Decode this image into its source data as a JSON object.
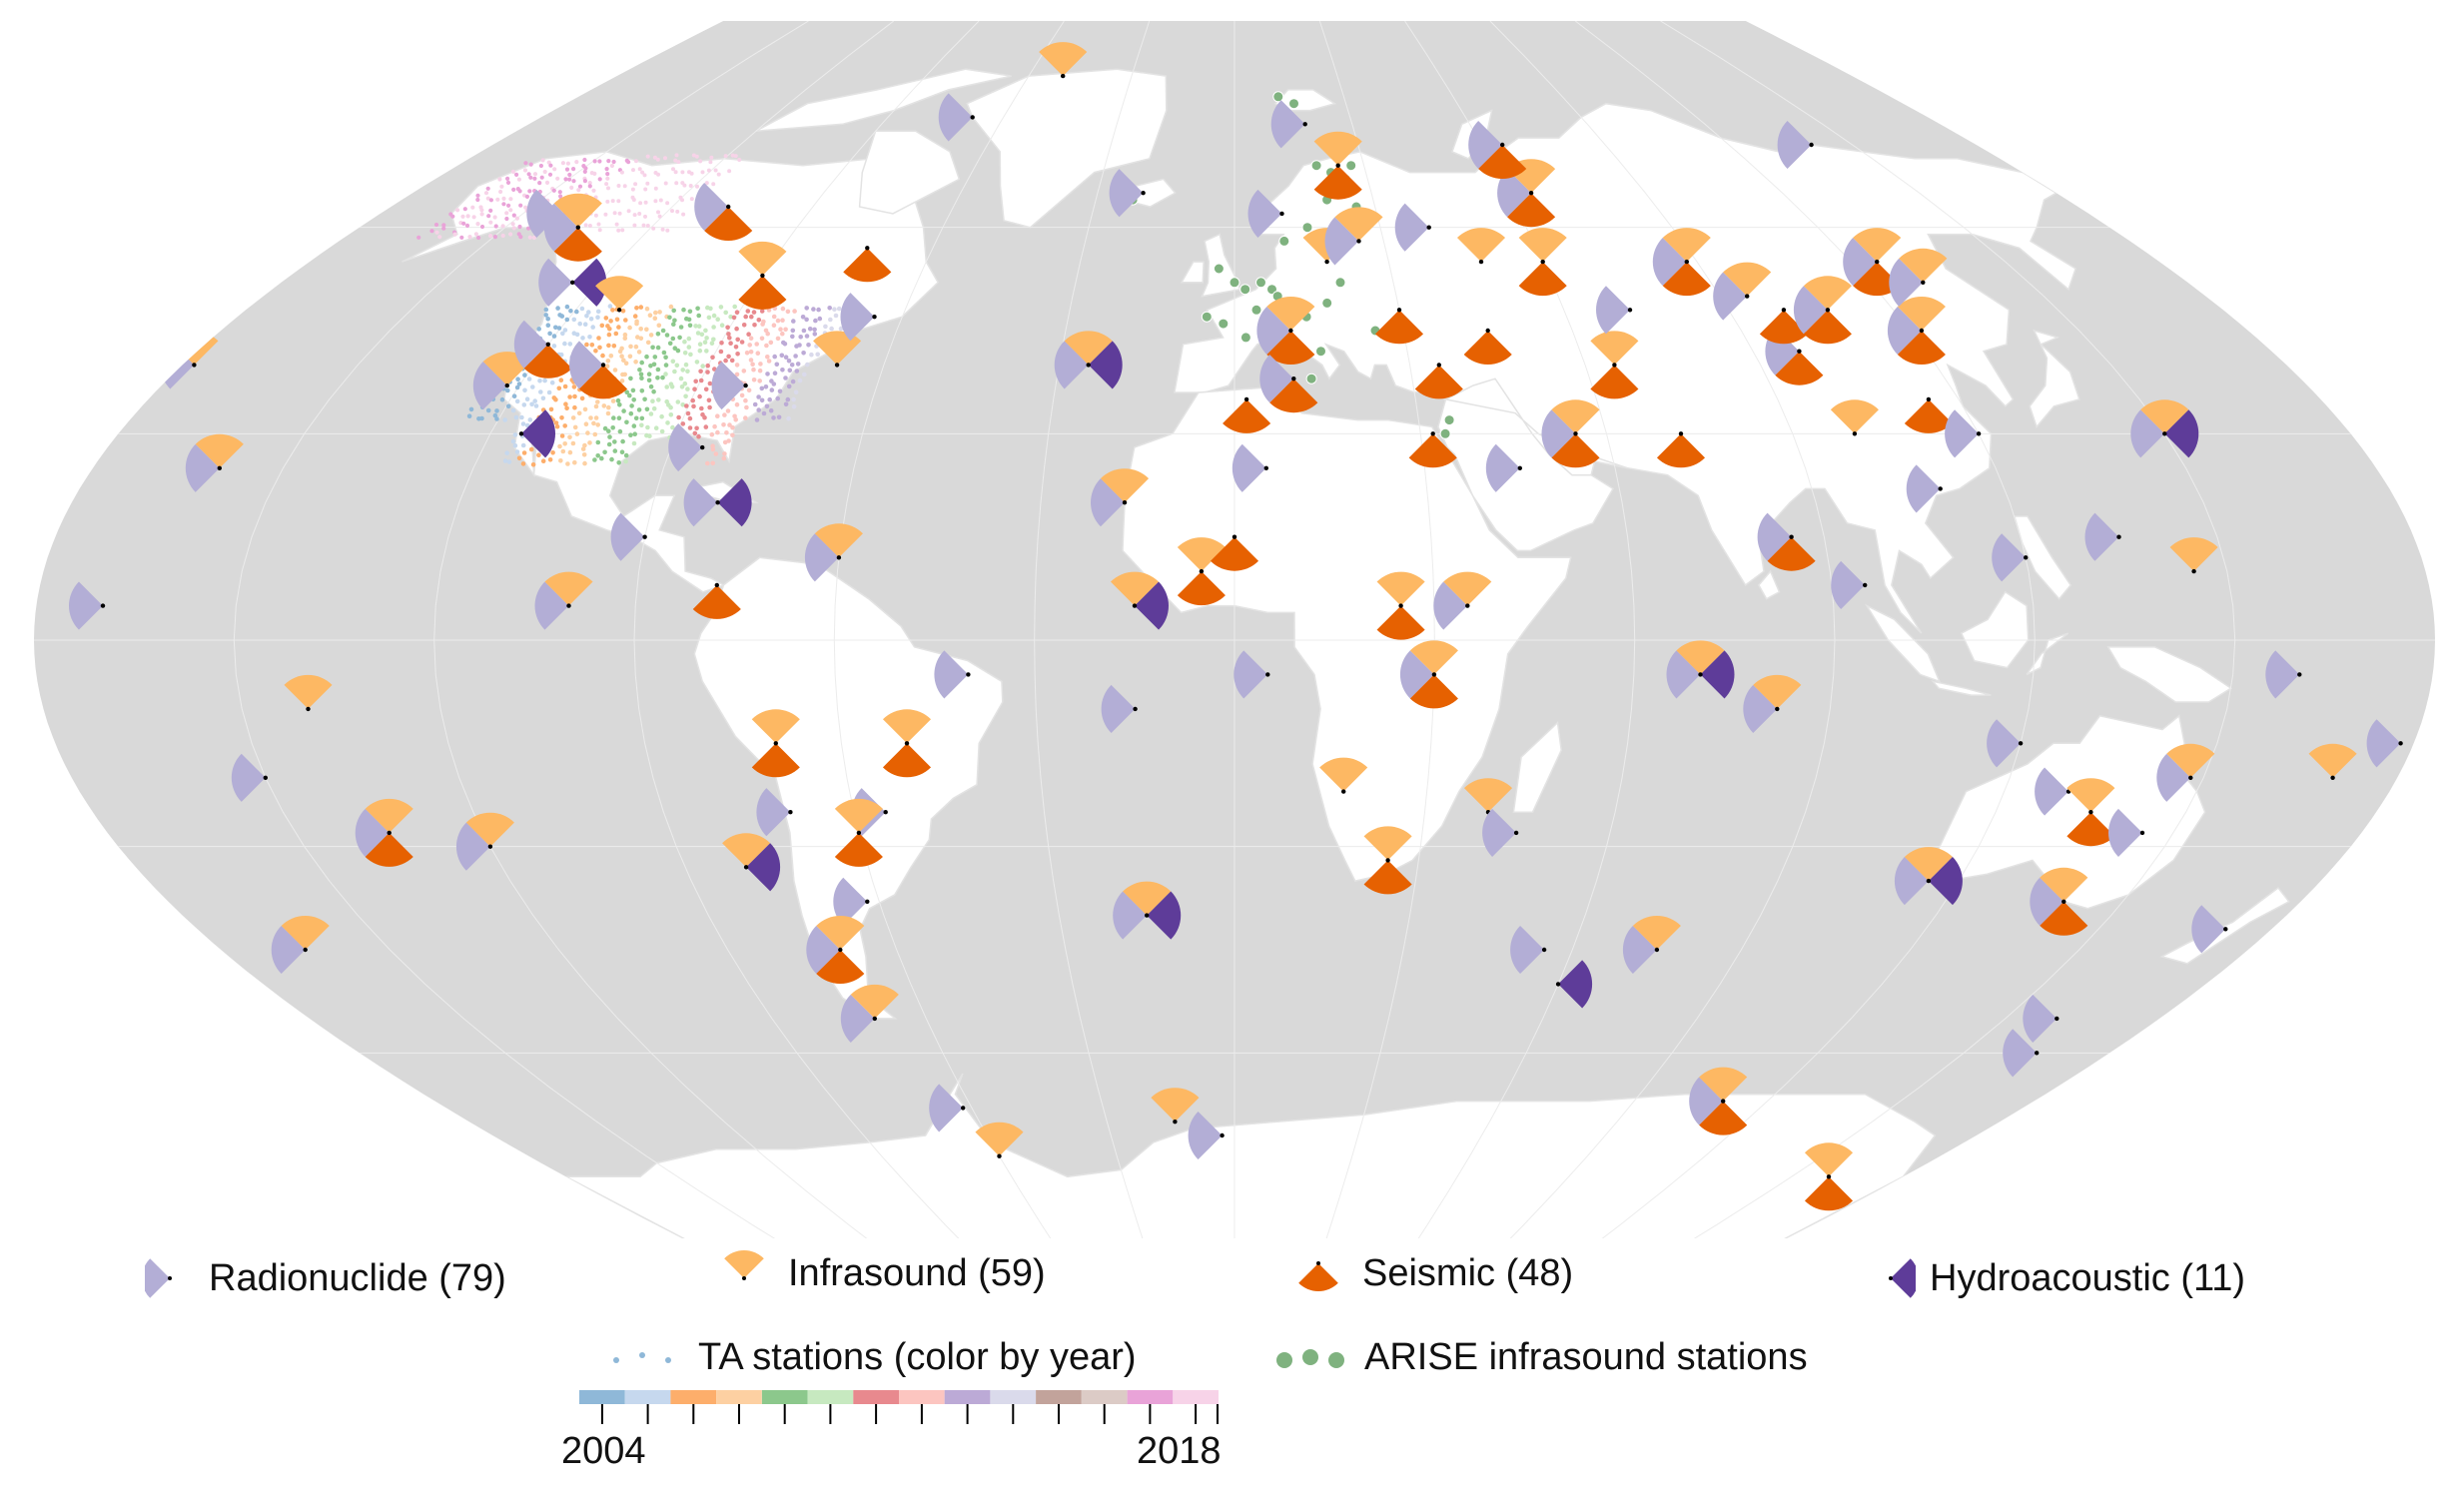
{
  "colors": {
    "ocean": "#d9d9d9",
    "land": "#ffffff",
    "radionuclide": "#b3aed6",
    "infrasound": "#fdb863",
    "seismic": "#e66101",
    "hydroacoustic": "#5e3c99",
    "arise": "#7fb27f",
    "ta_years": [
      "#8fb8d8",
      "#c6d8ee",
      "#fdae6b",
      "#fdd0a2",
      "#8cc88c",
      "#c7e9c0",
      "#e8898e",
      "#fcc5c0",
      "#bcaad6",
      "#dadaeb",
      "#c2a39b",
      "#dccbc6",
      "#e9a3d8",
      "#f7d3e8"
    ]
  },
  "legend": {
    "radionuclide": "Radionuclide (79)",
    "infrasound": "Infrasound (59)",
    "seismic": "Seismic (48)",
    "hydroacoustic": "Hydroacoustic (11)",
    "ta": "TA stations (color by year)",
    "arise": "ARISE infrasound stations",
    "year_start": "2004",
    "year_end": "2018"
  },
  "stations": [
    {
      "lon": -170,
      "lat": 5,
      "types": [
        "R"
      ]
    },
    {
      "lon": -160,
      "lat": 25,
      "types": [
        "R",
        "I"
      ]
    },
    {
      "lon": -140,
      "lat": -10,
      "types": [
        "I"
      ]
    },
    {
      "lon": -135,
      "lat": -28,
      "types": [
        "R",
        "I",
        "S"
      ]
    },
    {
      "lon": -150,
      "lat": -20,
      "types": [
        "R"
      ]
    },
    {
      "lon": -120,
      "lat": -30,
      "types": [
        "R",
        "I"
      ]
    },
    {
      "lon": -165,
      "lat": -45,
      "types": [
        "R",
        "I"
      ]
    },
    {
      "lon": -178,
      "lat": 40,
      "types": [
        "R",
        "I"
      ]
    },
    {
      "lon": -142,
      "lat": 62,
      "types": [
        "R"
      ]
    },
    {
      "lon": -135,
      "lat": 60,
      "types": [
        "R",
        "I",
        "S"
      ]
    },
    {
      "lon": -125,
      "lat": 52,
      "types": [
        "R",
        "H"
      ]
    },
    {
      "lon": -122,
      "lat": 37,
      "types": [
        "R",
        "I"
      ]
    },
    {
      "lon": -120,
      "lat": 43,
      "types": [
        "R",
        "S"
      ]
    },
    {
      "lon": -115,
      "lat": 30,
      "types": [
        "H"
      ]
    },
    {
      "lon": -108,
      "lat": 40,
      "types": [
        "R",
        "S"
      ]
    },
    {
      "lon": -112,
      "lat": 48,
      "types": [
        "I"
      ]
    },
    {
      "lon": -108,
      "lat": 63,
      "types": [
        "R",
        "S"
      ]
    },
    {
      "lon": -90,
      "lat": 53,
      "types": [
        "I",
        "S"
      ]
    },
    {
      "lon": -82,
      "lat": 37,
      "types": [
        "R"
      ]
    },
    {
      "lon": -85,
      "lat": 28,
      "types": [
        "R"
      ]
    },
    {
      "lon": -68,
      "lat": 40,
      "types": [
        "I"
      ]
    },
    {
      "lon": -73,
      "lat": 57,
      "types": [
        "S"
      ]
    },
    {
      "lon": -65,
      "lat": 47,
      "types": [
        "R"
      ]
    },
    {
      "lon": -80,
      "lat": 20,
      "types": [
        "R",
        "H"
      ]
    },
    {
      "lon": -90,
      "lat": 15,
      "types": [
        "R"
      ]
    },
    {
      "lon": -100,
      "lat": 5,
      "types": [
        "R",
        "I"
      ]
    },
    {
      "lon": -78,
      "lat": 8,
      "types": [
        "S"
      ]
    },
    {
      "lon": -60,
      "lat": 12,
      "types": [
        "R",
        "I"
      ]
    },
    {
      "lon": -40,
      "lat": -5,
      "types": [
        "R"
      ]
    },
    {
      "lon": -70,
      "lat": -15,
      "types": [
        "I",
        "S"
      ]
    },
    {
      "lon": -50,
      "lat": -15,
      "types": [
        "I",
        "S"
      ]
    },
    {
      "lon": -70,
      "lat": -25,
      "types": [
        "R"
      ]
    },
    {
      "lon": -55,
      "lat": -25,
      "types": [
        "R"
      ]
    },
    {
      "lon": -60,
      "lat": -28,
      "types": [
        "I",
        "S"
      ]
    },
    {
      "lon": -80,
      "lat": -33,
      "types": [
        "I",
        "H"
      ]
    },
    {
      "lon": -62,
      "lat": -38,
      "types": [
        "R"
      ]
    },
    {
      "lon": -70,
      "lat": -45,
      "types": [
        "R",
        "I",
        "S"
      ]
    },
    {
      "lon": -70,
      "lat": -55,
      "types": [
        "R",
        "I"
      ]
    },
    {
      "lon": -62,
      "lat": -68,
      "types": [
        "R"
      ]
    },
    {
      "lon": -60,
      "lat": -75,
      "types": [
        "I"
      ]
    },
    {
      "lon": -50,
      "lat": 82,
      "types": [
        "I"
      ]
    },
    {
      "lon": -68,
      "lat": 76,
      "types": [
        "R"
      ]
    },
    {
      "lon": -20,
      "lat": 65,
      "types": [
        "R"
      ]
    },
    {
      "lon": -25,
      "lat": 40,
      "types": [
        "R",
        "I",
        "H"
      ]
    },
    {
      "lon": -15,
      "lat": 5,
      "types": [
        "I",
        "H"
      ]
    },
    {
      "lon": -15,
      "lat": -10,
      "types": [
        "R"
      ]
    },
    {
      "lon": -15,
      "lat": -40,
      "types": [
        "R",
        "I",
        "H"
      ]
    },
    {
      "lon": -14,
      "lat": -70,
      "types": [
        "I"
      ]
    },
    {
      "lon": -3,
      "lat": -72,
      "types": [
        "R"
      ]
    },
    {
      "lon": -17,
      "lat": 20,
      "types": [
        "R",
        "I"
      ]
    },
    {
      "lon": -5,
      "lat": 10,
      "types": [
        "I",
        "S"
      ]
    },
    {
      "lon": 0,
      "lat": 15,
      "types": [
        "S"
      ]
    },
    {
      "lon": 2,
      "lat": 35,
      "types": [
        "S"
      ]
    },
    {
      "lon": 5,
      "lat": 25,
      "types": [
        "R"
      ]
    },
    {
      "lon": 10,
      "lat": 45,
      "types": [
        "R",
        "I",
        "S"
      ]
    },
    {
      "lon": 10,
      "lat": 38,
      "types": [
        "R",
        "S"
      ]
    },
    {
      "lon": 18,
      "lat": 55,
      "types": [
        "I"
      ]
    },
    {
      "lon": 18,
      "lat": 75,
      "types": [
        "R"
      ]
    },
    {
      "lon": 24,
      "lat": 69,
      "types": [
        "I",
        "S"
      ]
    },
    {
      "lon": 10,
      "lat": 62,
      "types": [
        "R"
      ]
    },
    {
      "lon": 25,
      "lat": 58,
      "types": [
        "R",
        "I"
      ]
    },
    {
      "lon": 30,
      "lat": 48,
      "types": [
        "S"
      ]
    },
    {
      "lon": 35,
      "lat": 40,
      "types": [
        "S"
      ]
    },
    {
      "lon": 32,
      "lat": 30,
      "types": [
        "S"
      ]
    },
    {
      "lon": 45,
      "lat": 45,
      "types": [
        "S"
      ]
    },
    {
      "lon": 40,
      "lat": 60,
      "types": [
        "R"
      ]
    },
    {
      "lon": 48,
      "lat": 55,
      "types": [
        "I"
      ]
    },
    {
      "lon": 25,
      "lat": 5,
      "types": [
        "I",
        "S"
      ]
    },
    {
      "lon": 5,
      "lat": -5,
      "types": [
        "R"
      ]
    },
    {
      "lon": 35,
      "lat": 5,
      "types": [
        "R",
        "I"
      ]
    },
    {
      "lon": 30,
      "lat": -5,
      "types": [
        "R",
        "I",
        "S"
      ]
    },
    {
      "lon": 17,
      "lat": -22,
      "types": [
        "I"
      ]
    },
    {
      "lon": 25,
      "lat": -32,
      "types": [
        "I",
        "S"
      ]
    },
    {
      "lon": 40,
      "lat": -25,
      "types": [
        "I"
      ]
    },
    {
      "lon": 45,
      "lat": -28,
      "types": [
        "R"
      ]
    },
    {
      "lon": 45,
      "lat": 25,
      "types": [
        "R"
      ]
    },
    {
      "lon": 55,
      "lat": 30,
      "types": [
        "R",
        "I",
        "S"
      ]
    },
    {
      "lon": 65,
      "lat": 40,
      "types": [
        "I",
        "S"
      ]
    },
    {
      "lon": 60,
      "lat": 55,
      "types": [
        "I",
        "S"
      ]
    },
    {
      "lon": 65,
      "lat": 65,
      "types": [
        "R",
        "I",
        "S"
      ]
    },
    {
      "lon": 65,
      "lat": 72,
      "types": [
        "R",
        "S"
      ]
    },
    {
      "lon": 72,
      "lat": 48,
      "types": [
        "R"
      ]
    },
    {
      "lon": 72,
      "lat": 30,
      "types": [
        "S"
      ]
    },
    {
      "lon": 70,
      "lat": -5,
      "types": [
        "R",
        "I",
        "H"
      ]
    },
    {
      "lon": 75,
      "lat": -45,
      "types": [
        "R",
        "I"
      ]
    },
    {
      "lon": 55,
      "lat": -45,
      "types": [
        "R"
      ]
    },
    {
      "lon": 60,
      "lat": -50,
      "types": [
        "H"
      ]
    },
    {
      "lon": 82,
      "lat": -10,
      "types": [
        "R",
        "I"
      ]
    },
    {
      "lon": 88,
      "lat": 55,
      "types": [
        "R",
        "I",
        "S"
      ]
    },
    {
      "lon": 95,
      "lat": 50,
      "types": [
        "R",
        "I"
      ]
    },
    {
      "lon": 98,
      "lat": 42,
      "types": [
        "R",
        "S"
      ]
    },
    {
      "lon": 100,
      "lat": 30,
      "types": [
        "I"
      ]
    },
    {
      "lon": 85,
      "lat": 15,
      "types": [
        "R",
        "S"
      ]
    },
    {
      "lon": 95,
      "lat": 8,
      "types": [
        "R"
      ]
    },
    {
      "lon": 100,
      "lat": 48,
      "types": [
        "S"
      ]
    },
    {
      "lon": 108,
      "lat": 48,
      "types": [
        "R",
        "I",
        "S"
      ]
    },
    {
      "lon": 110,
      "lat": 22,
      "types": [
        "R"
      ]
    },
    {
      "lon": 115,
      "lat": 35,
      "types": [
        "S"
      ]
    },
    {
      "lon": 120,
      "lat": 30,
      "types": [
        "R"
      ]
    },
    {
      "lon": 122,
      "lat": 45,
      "types": [
        "R",
        "I",
        "S"
      ]
    },
    {
      "lon": 125,
      "lat": 55,
      "types": [
        "R",
        "I",
        "S"
      ]
    },
    {
      "lon": 130,
      "lat": 52,
      "types": [
        "R",
        "I"
      ]
    },
    {
      "lon": 140,
      "lat": 72,
      "types": [
        "R"
      ]
    },
    {
      "lon": 120,
      "lat": 12,
      "types": [
        "R"
      ]
    },
    {
      "lon": 135,
      "lat": 15,
      "types": [
        "R"
      ]
    },
    {
      "lon": 145,
      "lat": 10,
      "types": [
        "I"
      ]
    },
    {
      "lon": 150,
      "lat": 30,
      "types": [
        "R",
        "I",
        "H"
      ]
    },
    {
      "lon": 160,
      "lat": -5,
      "types": [
        "R"
      ]
    },
    {
      "lon": 148,
      "lat": -20,
      "types": [
        "R",
        "I"
      ]
    },
    {
      "lon": 130,
      "lat": -22,
      "types": [
        "R"
      ]
    },
    {
      "lon": 120,
      "lat": -15,
      "types": [
        "R"
      ]
    },
    {
      "lon": 135,
      "lat": -25,
      "types": [
        "I",
        "S"
      ]
    },
    {
      "lon": 115,
      "lat": -35,
      "types": [
        "R",
        "I",
        "H"
      ]
    },
    {
      "lon": 140,
      "lat": -38,
      "types": [
        "R",
        "I",
        "S"
      ]
    },
    {
      "lon": 145,
      "lat": -28,
      "types": [
        "R"
      ]
    },
    {
      "lon": 170,
      "lat": -20,
      "types": [
        "I"
      ]
    },
    {
      "lon": 178,
      "lat": -15,
      "types": [
        "R"
      ]
    },
    {
      "lon": 172,
      "lat": -42,
      "types": [
        "R"
      ]
    },
    {
      "lon": 160,
      "lat": -55,
      "types": [
        "R"
      ]
    },
    {
      "lon": 110,
      "lat": -67,
      "types": [
        "R",
        "I",
        "S"
      ]
    },
    {
      "lon": 160,
      "lat": -78,
      "types": [
        "I",
        "S"
      ]
    },
    {
      "lon": 165,
      "lat": -60,
      "types": [
        "R"
      ]
    }
  ],
  "arise": [
    {
      "lon": -22,
      "lat": 64
    },
    {
      "lon": 12,
      "lat": 79
    },
    {
      "lon": 16,
      "lat": 78
    },
    {
      "lon": 19,
      "lat": 69
    },
    {
      "lon": 22,
      "lat": 68
    },
    {
      "lon": 25,
      "lat": 67
    },
    {
      "lon": 27,
      "lat": 69
    },
    {
      "lon": 20,
      "lat": 64
    },
    {
      "lon": 15,
      "lat": 60
    },
    {
      "lon": 10,
      "lat": 58
    },
    {
      "lon": 26,
      "lat": 63
    },
    {
      "lon": -3,
      "lat": 54
    },
    {
      "lon": 0,
      "lat": 52
    },
    {
      "lon": 2,
      "lat": 51
    },
    {
      "lon": 5,
      "lat": 52
    },
    {
      "lon": 7,
      "lat": 51
    },
    {
      "lon": 8,
      "lat": 50
    },
    {
      "lon": 4,
      "lat": 48
    },
    {
      "lon": -5,
      "lat": 47
    },
    {
      "lon": -2,
      "lat": 46
    },
    {
      "lon": 6,
      "lat": 46
    },
    {
      "lon": 2,
      "lat": 44
    },
    {
      "lon": 10,
      "lat": 47
    },
    {
      "lon": 13,
      "lat": 47
    },
    {
      "lon": 15,
      "lat": 42
    },
    {
      "lon": 13,
      "lat": 38
    },
    {
      "lon": 25,
      "lat": 45
    },
    {
      "lon": 20,
      "lat": 52
    },
    {
      "lon": 17,
      "lat": 49
    },
    {
      "lon": 35,
      "lat": 32
    },
    {
      "lon": 34,
      "lat": 30
    }
  ]
}
